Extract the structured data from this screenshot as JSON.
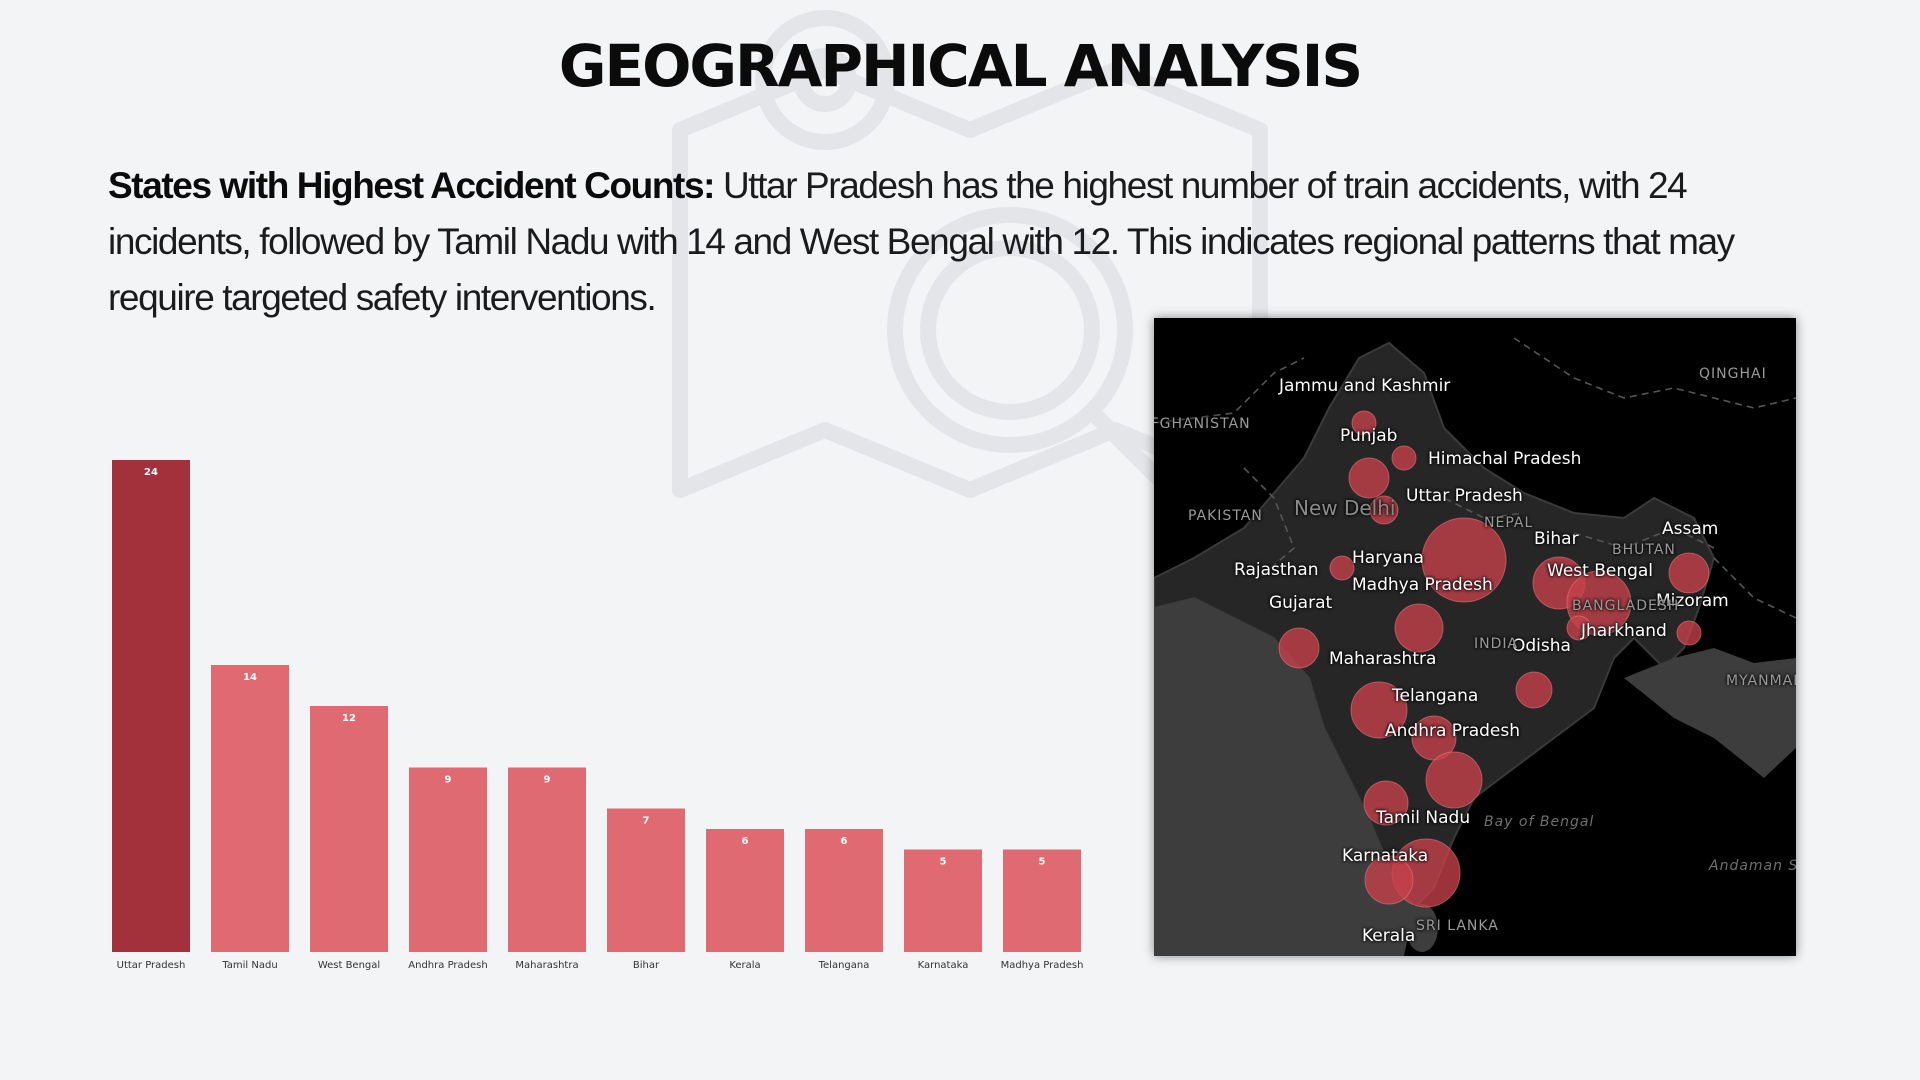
{
  "title": "GEOGRAPHICAL ANALYSIS",
  "summary": {
    "lead": "States with Highest Accident Counts:",
    "body": " Uttar Pradesh has the highest number of train accidents, with 24 incidents, followed by Tamil Nadu with 14 and West Bengal with 12. This indicates regional patterns that may require targeted safety interventions."
  },
  "watermark_icon": "map-magnifier-icon",
  "chart_data": {
    "type": "bar",
    "title": "",
    "xlabel": "",
    "ylabel": "",
    "categories": [
      "Uttar Pradesh",
      "Tamil Nadu",
      "West Bengal",
      "Andhra Pradesh",
      "Maharashtra",
      "Bihar",
      "Kerala",
      "Telangana",
      "Karnataka",
      "Madhya Pradesh"
    ],
    "values": [
      24,
      14,
      12,
      9,
      9,
      7,
      6,
      6,
      5,
      5
    ],
    "ylim": [
      0,
      24
    ],
    "grid": false,
    "data_labels": true,
    "colors": {
      "highlight": "#a3313c",
      "default": "#e06a72"
    }
  },
  "map": {
    "background": "#000000",
    "land_color": "#2b2b2b",
    "bubble_color": "#c8414c",
    "state_labels": [
      "Jammu and Kashmir",
      "Punjab",
      "Himachal Pradesh",
      "Uttar Pradesh",
      "Haryana",
      "Rajasthan",
      "Madhya Pradesh",
      "Gujarat",
      "Bihar",
      "Assam",
      "West Bengal",
      "Mizoram",
      "Jharkhand",
      "Odisha",
      "Maharashtra",
      "Telangana",
      "Andhra Pradesh",
      "Tamil Nadu",
      "Karnataka",
      "Kerala"
    ],
    "region_labels": [
      "PAKISTAN",
      "New Delhi",
      "NEPAL",
      "BHUTAN",
      "BANGLADESH",
      "INDIA",
      "MYANMAR",
      "QINGHAI",
      "AFGHANISTAN",
      "SRI LANKA",
      "Bay of Bengal",
      "Andaman Sea"
    ]
  }
}
